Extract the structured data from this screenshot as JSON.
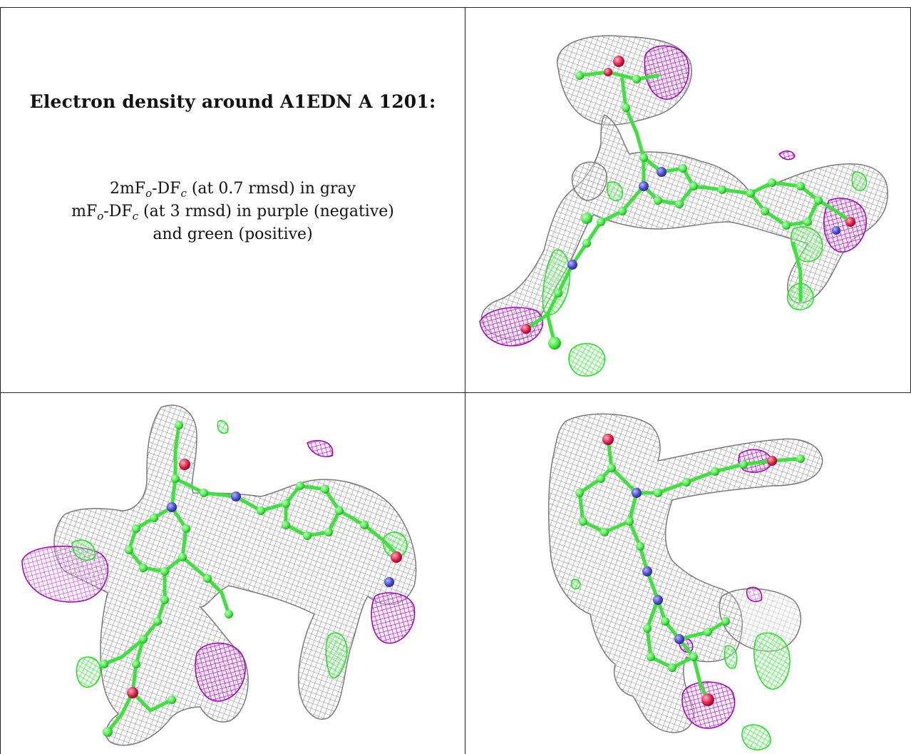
{
  "title": "Electron density around A1EDN A 1201:",
  "legend": {
    "line1": {
      "pre": "2mF",
      "sub1": "o",
      "mid": "-DF",
      "sub2": "c",
      "post": " (at 0.7 rmsd) in gray"
    },
    "line2": {
      "pre": "mF",
      "sub1": "o",
      "mid": "-DF",
      "sub2": "c",
      "post": " (at 3 rmsd) in purple (negative)"
    },
    "line3": "and green (positive)"
  },
  "colors": {
    "mesh_gray": "#8c8c8c",
    "mesh_purple": "#b300c8",
    "mesh_green": "#2dff2d",
    "atom_carbon": "#44ee44",
    "atom_nitrogen": "#4a4ad0",
    "atom_oxygen": "#e0204a"
  },
  "views": [
    {
      "name": "view-top-right",
      "icon": "density-view-1"
    },
    {
      "name": "view-bottom-left",
      "icon": "density-view-2"
    },
    {
      "name": "view-bottom-right",
      "icon": "density-view-3"
    }
  ]
}
